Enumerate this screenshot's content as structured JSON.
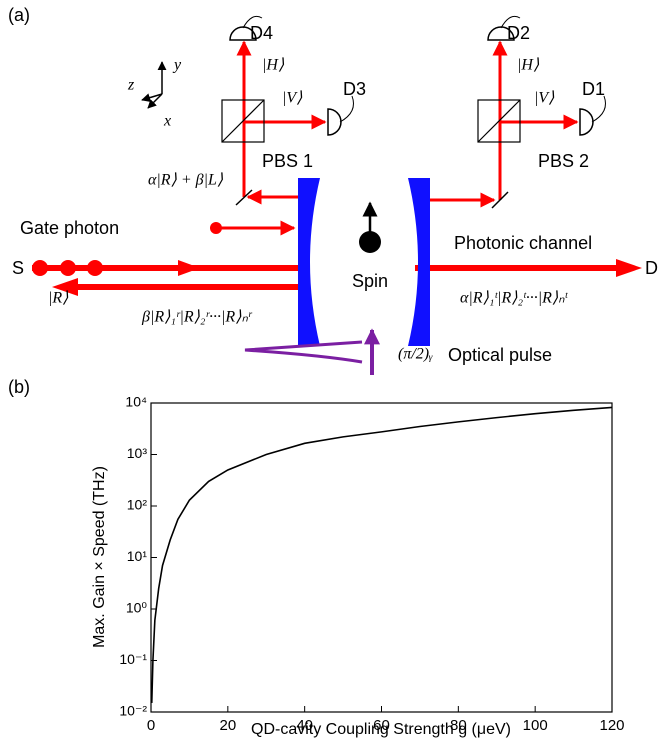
{
  "panel_a": {
    "label": "(a)",
    "detectors": [
      "D1",
      "D2",
      "D3",
      "D4"
    ],
    "splitters": [
      "PBS 1",
      "PBS 2"
    ],
    "h_state": "|H⟩",
    "v_state": "|V⟩",
    "axes": [
      "x",
      "y",
      "z"
    ],
    "gate_state": "α|R⟩ + β|L⟩",
    "gate_photon": "Gate photon",
    "source": "S",
    "destination": "D",
    "input_state": "|R⟩",
    "reflected_state": "β|R⟩₁ʳ|R⟩₂ʳ···|R⟩ₙʳ",
    "transmitted_state": "α|R⟩₁ᵗ|R⟩₂ᵗ···|R⟩ₙᵗ",
    "spin": "Spin",
    "channel": "Photonic channel",
    "pulse_angle": "(π/2)ᵧ",
    "pulse": "Optical pulse"
  },
  "chart_data": {
    "type": "line",
    "panel_label": "(b)",
    "x_label": "QD-cavity Coupling Strength g (μeV)",
    "y_label": "Max. Gain × Speed (THz)",
    "yscale": "log",
    "x": [
      0.2,
      0.5,
      1,
      2,
      3,
      5,
      7,
      10,
      15,
      20,
      30,
      40,
      50,
      60,
      70,
      80,
      90,
      100,
      110,
      120
    ],
    "series": [
      {
        "color": "#000000",
        "values": [
          0.015,
          0.1,
          0.6,
          2.5,
          7,
          22,
          55,
          130,
          300,
          500,
          1000,
          1650,
          2200,
          2750,
          3500,
          4300,
          5200,
          6200,
          7200,
          8200
        ]
      }
    ],
    "xlim": [
      0,
      120
    ],
    "xticks": [
      0,
      20,
      40,
      60,
      80,
      100,
      120
    ],
    "ylim": [
      0.01,
      10000
    ],
    "yticks": [
      {
        "value": 0.01,
        "label": "10⁻²"
      },
      {
        "value": 0.1,
        "label": "10⁻¹"
      },
      {
        "value": 1,
        "label": "10⁰"
      },
      {
        "value": 10,
        "label": "10¹"
      },
      {
        "value": 100,
        "label": "10²"
      },
      {
        "value": 1000,
        "label": "10³"
      },
      {
        "value": 10000,
        "label": "10⁴"
      }
    ]
  }
}
